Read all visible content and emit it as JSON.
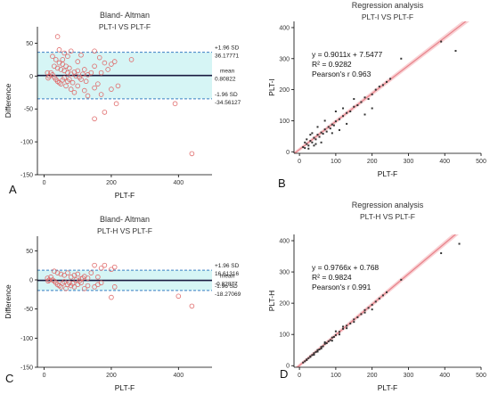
{
  "chart_data": [
    {
      "panel": "A",
      "type": "scatter",
      "title": "Bland- Altman",
      "subtitle": "PLT-I VS PLT-F",
      "xlabel": "PLT-F",
      "ylabel": "Difference",
      "xlim": [
        -20,
        500
      ],
      "ylim": [
        -150,
        75
      ],
      "xticks": [
        0,
        200,
        400
      ],
      "yticks": [
        -150,
        -100,
        -50,
        0,
        50
      ],
      "mean": 0.80822,
      "upper_loa": 36.17771,
      "lower_loa": -34.56127,
      "labels": {
        "upper_sd": "+1.96 SD",
        "upper_val": "36.17771",
        "mean_label": "mean",
        "mean_val": "0.80822",
        "lower_sd": "-1.96 SD",
        "lower_val": "-34.56127"
      },
      "points": [
        [
          40,
          60
        ],
        [
          45,
          40
        ],
        [
          60,
          35
        ],
        [
          70,
          30
        ],
        [
          80,
          38
        ],
        [
          110,
          32
        ],
        [
          150,
          38
        ],
        [
          165,
          28
        ],
        [
          100,
          22
        ],
        [
          55,
          25
        ],
        [
          30,
          15
        ],
        [
          40,
          12
        ],
        [
          50,
          10
        ],
        [
          60,
          8
        ],
        [
          70,
          5
        ],
        [
          80,
          3
        ],
        [
          90,
          6
        ],
        [
          100,
          8
        ],
        [
          120,
          10
        ],
        [
          140,
          5
        ],
        [
          150,
          15
        ],
        [
          180,
          20
        ],
        [
          200,
          18
        ],
        [
          260,
          25
        ],
        [
          210,
          22
        ],
        [
          170,
          5
        ],
        [
          130,
          2
        ],
        [
          190,
          10
        ],
        [
          20,
          5
        ],
        [
          25,
          2
        ],
        [
          30,
          -2
        ],
        [
          35,
          -5
        ],
        [
          40,
          -8
        ],
        [
          45,
          -10
        ],
        [
          50,
          -12
        ],
        [
          55,
          -6
        ],
        [
          60,
          -3
        ],
        [
          65,
          -15
        ],
        [
          70,
          -8
        ],
        [
          75,
          -5
        ],
        [
          80,
          -20
        ],
        [
          85,
          -10
        ],
        [
          90,
          -25
        ],
        [
          100,
          -15
        ],
        [
          110,
          -5
        ],
        [
          120,
          -22
        ],
        [
          130,
          -30
        ],
        [
          150,
          -18
        ],
        [
          160,
          -12
        ],
        [
          170,
          -28
        ],
        [
          200,
          -20
        ],
        [
          220,
          -15
        ],
        [
          150,
          -65
        ],
        [
          215,
          -42
        ],
        [
          180,
          -55
        ],
        [
          390,
          -42
        ],
        [
          440,
          -118
        ],
        [
          10,
          5
        ],
        [
          15,
          0
        ],
        [
          12,
          -3
        ],
        [
          25,
          30
        ],
        [
          35,
          25
        ],
        [
          45,
          20
        ],
        [
          55,
          18
        ],
        [
          65,
          15
        ],
        [
          75,
          12
        ],
        [
          95,
          0
        ],
        [
          105,
          -2
        ],
        [
          115,
          3
        ],
        [
          125,
          -8
        ]
      ]
    },
    {
      "panel": "B",
      "type": "scatter",
      "title": "Regression analysis",
      "subtitle": "PLT-I VS PLT-F",
      "xlabel": "PLT-F",
      "ylabel": "PLT-I",
      "xlim": [
        -15,
        500
      ],
      "ylim": [
        -5,
        420
      ],
      "xticks": [
        0,
        100,
        200,
        300,
        400,
        500
      ],
      "yticks": [
        0,
        100,
        200,
        300,
        400
      ],
      "equation": "y = 0.9011x + 7.5477",
      "r2": "R² = 0.9282",
      "pearson": "Pearson's r  0.963",
      "slope": 0.9011,
      "intercept": 7.5477,
      "points": [
        [
          10,
          15
        ],
        [
          15,
          12
        ],
        [
          20,
          25
        ],
        [
          25,
          20
        ],
        [
          30,
          35
        ],
        [
          35,
          30
        ],
        [
          40,
          45
        ],
        [
          45,
          40
        ],
        [
          50,
          55
        ],
        [
          55,
          48
        ],
        [
          60,
          62
        ],
        [
          65,
          58
        ],
        [
          70,
          72
        ],
        [
          75,
          65
        ],
        [
          80,
          80
        ],
        [
          85,
          75
        ],
        [
          90,
          88
        ],
        [
          95,
          85
        ],
        [
          100,
          98
        ],
        [
          110,
          105
        ],
        [
          120,
          115
        ],
        [
          130,
          125
        ],
        [
          140,
          130
        ],
        [
          150,
          145
        ],
        [
          160,
          150
        ],
        [
          170,
          160
        ],
        [
          180,
          175
        ],
        [
          190,
          170
        ],
        [
          200,
          185
        ],
        [
          210,
          200
        ],
        [
          220,
          210
        ],
        [
          230,
          215
        ],
        [
          240,
          225
        ],
        [
          250,
          235
        ],
        [
          280,
          300
        ],
        [
          390,
          355
        ],
        [
          430,
          325
        ],
        [
          200,
          140
        ],
        [
          180,
          120
        ],
        [
          150,
          170
        ],
        [
          130,
          90
        ],
        [
          120,
          140
        ],
        [
          110,
          70
        ],
        [
          100,
          130
        ],
        [
          90,
          60
        ],
        [
          70,
          100
        ],
        [
          60,
          30
        ],
        [
          50,
          80
        ],
        [
          40,
          20
        ],
        [
          30,
          55
        ],
        [
          20,
          40
        ],
        [
          15,
          30
        ],
        [
          25,
          10
        ],
        [
          35,
          60
        ],
        [
          45,
          25
        ]
      ]
    },
    {
      "panel": "C",
      "type": "scatter",
      "title": "Bland- Altman",
      "subtitle": "PLT-H VS PLT-F",
      "xlabel": "PLT-F",
      "ylabel": "Difference",
      "xlim": [
        -20,
        500
      ],
      "ylim": [
        -150,
        75
      ],
      "xticks": [
        0,
        200,
        400
      ],
      "yticks": [
        -150,
        -100,
        -50,
        0,
        50
      ],
      "mean": -0.82877,
      "upper_loa": 16.61316,
      "lower_loa": -18.27069,
      "labels": {
        "upper_sd": "+1.96 SD",
        "upper_val": "16.61316",
        "mean_label": "mean",
        "mean_val": "-0.82877",
        "lower_sd": "-1.96 SD",
        "lower_val": "-18.27069"
      },
      "points": [
        [
          30,
          15
        ],
        [
          40,
          12
        ],
        [
          50,
          10
        ],
        [
          60,
          8
        ],
        [
          70,
          12
        ],
        [
          80,
          5
        ],
        [
          90,
          8
        ],
        [
          100,
          10
        ],
        [
          120,
          6
        ],
        [
          140,
          12
        ],
        [
          150,
          25
        ],
        [
          170,
          20
        ],
        [
          180,
          25
        ],
        [
          200,
          18
        ],
        [
          210,
          22
        ],
        [
          160,
          5
        ],
        [
          130,
          3
        ],
        [
          110,
          2
        ],
        [
          20,
          5
        ],
        [
          25,
          0
        ],
        [
          30,
          -2
        ],
        [
          35,
          -5
        ],
        [
          40,
          -8
        ],
        [
          45,
          -10
        ],
        [
          50,
          -12
        ],
        [
          55,
          -6
        ],
        [
          60,
          -3
        ],
        [
          65,
          -15
        ],
        [
          70,
          -8
        ],
        [
          75,
          -5
        ],
        [
          80,
          -10
        ],
        [
          85,
          -6
        ],
        [
          90,
          -12
        ],
        [
          100,
          -8
        ],
        [
          110,
          -5
        ],
        [
          120,
          -15
        ],
        [
          130,
          -10
        ],
        [
          150,
          -12
        ],
        [
          160,
          -8
        ],
        [
          170,
          -5
        ],
        [
          200,
          -30
        ],
        [
          210,
          -12
        ],
        [
          400,
          -28
        ],
        [
          440,
          -45
        ],
        [
          10,
          3
        ],
        [
          15,
          0
        ],
        [
          12,
          -2
        ],
        [
          95,
          0
        ],
        [
          105,
          -2
        ],
        [
          115,
          3
        ]
      ]
    },
    {
      "panel": "D",
      "type": "scatter",
      "title": "Regression analysis",
      "subtitle": "PLT-H VS PLT-F",
      "xlabel": "PLT-F",
      "ylabel": "PLT-H",
      "xlim": [
        -15,
        500
      ],
      "ylim": [
        -5,
        420
      ],
      "xticks": [
        0,
        100,
        200,
        300,
        400,
        500
      ],
      "yticks": [
        0,
        100,
        200,
        300,
        400
      ],
      "equation": "y = 0.9766x + 0.768",
      "r2": "R² = 0.9824",
      "pearson": "Pearson's r  0.991",
      "slope": 0.9766,
      "intercept": 0.768,
      "points": [
        [
          10,
          10
        ],
        [
          15,
          14
        ],
        [
          20,
          20
        ],
        [
          25,
          24
        ],
        [
          30,
          30
        ],
        [
          35,
          34
        ],
        [
          40,
          40
        ],
        [
          45,
          44
        ],
        [
          50,
          50
        ],
        [
          55,
          52
        ],
        [
          60,
          60
        ],
        [
          65,
          62
        ],
        [
          70,
          70
        ],
        [
          75,
          72
        ],
        [
          80,
          78
        ],
        [
          85,
          82
        ],
        [
          90,
          90
        ],
        [
          95,
          92
        ],
        [
          100,
          98
        ],
        [
          110,
          108
        ],
        [
          120,
          118
        ],
        [
          130,
          128
        ],
        [
          140,
          135
        ],
        [
          150,
          148
        ],
        [
          160,
          155
        ],
        [
          170,
          165
        ],
        [
          180,
          178
        ],
        [
          190,
          185
        ],
        [
          200,
          195
        ],
        [
          210,
          205
        ],
        [
          220,
          215
        ],
        [
          230,
          225
        ],
        [
          240,
          235
        ],
        [
          280,
          275
        ],
        [
          390,
          360
        ],
        [
          440,
          390
        ],
        [
          200,
          180
        ],
        [
          180,
          170
        ],
        [
          150,
          140
        ],
        [
          130,
          120
        ],
        [
          120,
          125
        ],
        [
          110,
          100
        ],
        [
          100,
          110
        ],
        [
          90,
          80
        ],
        [
          70,
          75
        ],
        [
          60,
          55
        ],
        [
          50,
          45
        ],
        [
          40,
          35
        ],
        [
          30,
          28
        ],
        [
          20,
          18
        ]
      ]
    }
  ],
  "colors": {
    "marker": "#e06a6a",
    "band": "#d6f5f5",
    "mean_line": "#1a1a40",
    "loa_line": "#3b7fc4",
    "reg_line": "#e8828a",
    "reg_band": "#f7c6c9",
    "axis": "#000000"
  }
}
